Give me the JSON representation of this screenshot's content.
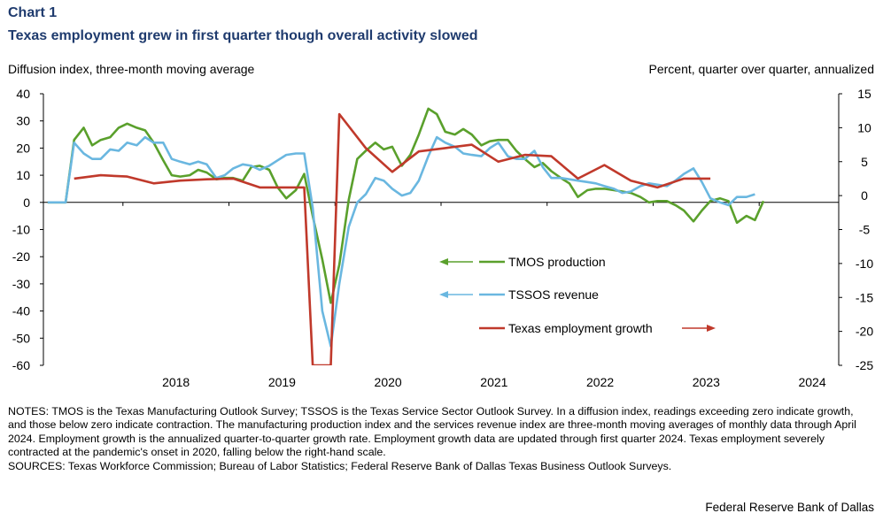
{
  "header": {
    "chart_number": "Chart 1",
    "title": "Texas employment grew in first quarter though overall activity slowed"
  },
  "units": {
    "left": "Diffusion index, three-month  moving average",
    "right": "Percent, quarter over quarter, annualized"
  },
  "notes": "NOTES: TMOS is the Texas Manufacturing Outlook Survey; TSSOS is the Texas Service Sector Outlook Survey. In a diffusion index, readings exceeding zero indicate growth, and those below zero indicate contraction. The manufacturing production index and the services revenue index are three-month moving averages of monthly data through April 2024.  Employment growth is the annualized quarter-to-quarter growth rate. Employment growth data are updated through first quarter 2024. Texas employment severely contracted at the pandemic's onset in 2020, falling below the right-hand scale.",
  "sources": "SOURCES: Texas Workforce Commission; Bureau of Labor Statistics; Federal Reserve Bank of Dallas Texas Business Outlook Surveys.",
  "credit": "Federal Reserve Bank of Dallas",
  "colors": {
    "tmos": "#5aa02c",
    "tssos": "#6ab7e0",
    "employment": "#c0392b",
    "axis": "#000000"
  },
  "chart_data": {
    "type": "line",
    "x_axis": {
      "ticks": [
        "2018",
        "2019",
        "2020",
        "2021",
        "2022",
        "2023",
        "2024"
      ],
      "range": [
        2017.25,
        2024.75
      ]
    },
    "y_left": {
      "range": [
        -60,
        40
      ],
      "ticks": [
        40,
        30,
        20,
        10,
        0,
        -10,
        -20,
        -30,
        -40,
        -50,
        -60
      ]
    },
    "y_right": {
      "range": [
        -25,
        15
      ],
      "ticks": [
        15,
        10,
        5,
        0,
        -5,
        -10,
        -15,
        -20,
        -25
      ]
    },
    "series": [
      {
        "name": "TMOS production",
        "axis": "left",
        "legend_arrow": "left",
        "points": [
          [
            2017.29,
            0
          ],
          [
            2017.46,
            0
          ],
          [
            2017.54,
            23
          ],
          [
            2017.63,
            27.5
          ],
          [
            2017.71,
            21
          ],
          [
            2017.79,
            23
          ],
          [
            2017.88,
            24
          ],
          [
            2017.96,
            27.5
          ],
          [
            2018.04,
            29
          ],
          [
            2018.13,
            27.5
          ],
          [
            2018.21,
            26.5
          ],
          [
            2018.29,
            22
          ],
          [
            2018.38,
            15.5
          ],
          [
            2018.46,
            10
          ],
          [
            2018.54,
            9.5
          ],
          [
            2018.63,
            10
          ],
          [
            2018.71,
            12
          ],
          [
            2018.79,
            11
          ],
          [
            2018.88,
            8.5
          ],
          [
            2018.96,
            9
          ],
          [
            2019.04,
            9
          ],
          [
            2019.13,
            8
          ],
          [
            2019.21,
            13
          ],
          [
            2019.29,
            13.5
          ],
          [
            2019.38,
            12
          ],
          [
            2019.46,
            5.5
          ],
          [
            2019.54,
            1.5
          ],
          [
            2019.63,
            4.5
          ],
          [
            2019.71,
            10.5
          ],
          [
            2019.79,
            -5
          ],
          [
            2019.88,
            -21
          ],
          [
            2019.96,
            -37
          ],
          [
            2020.04,
            -23
          ],
          [
            2020.13,
            1
          ],
          [
            2020.21,
            16
          ],
          [
            2020.29,
            19
          ],
          [
            2020.38,
            22
          ],
          [
            2020.46,
            19.5
          ],
          [
            2020.54,
            20.5
          ],
          [
            2020.63,
            13.5
          ],
          [
            2020.71,
            17.5
          ],
          [
            2020.79,
            25
          ],
          [
            2020.88,
            34.5
          ],
          [
            2020.96,
            32.5
          ],
          [
            2021.04,
            26
          ],
          [
            2021.13,
            25
          ],
          [
            2021.21,
            27
          ],
          [
            2021.29,
            25
          ],
          [
            2021.38,
            21
          ],
          [
            2021.46,
            22.5
          ],
          [
            2021.54,
            23
          ],
          [
            2021.63,
            23
          ],
          [
            2021.71,
            19
          ],
          [
            2021.79,
            16
          ],
          [
            2021.88,
            13
          ],
          [
            2021.96,
            14.5
          ],
          [
            2022.04,
            11.5
          ],
          [
            2022.13,
            9
          ],
          [
            2022.21,
            7
          ],
          [
            2022.29,
            2
          ],
          [
            2022.38,
            4.5
          ],
          [
            2022.46,
            5
          ],
          [
            2022.54,
            5
          ],
          [
            2022.63,
            4.5
          ],
          [
            2022.71,
            4
          ],
          [
            2022.79,
            3.5
          ],
          [
            2022.88,
            2
          ],
          [
            2022.96,
            0
          ],
          [
            2023.04,
            0.5
          ],
          [
            2023.13,
            0.5
          ],
          [
            2023.21,
            -1
          ],
          [
            2023.29,
            -3
          ],
          [
            2023.38,
            -7
          ],
          [
            2023.46,
            -3
          ],
          [
            2023.54,
            0.5
          ],
          [
            2023.63,
            1.5
          ],
          [
            2023.71,
            0.5
          ],
          [
            2023.79,
            -7.5
          ],
          [
            2023.88,
            -5
          ],
          [
            2023.96,
            -6.5
          ],
          [
            2024.04,
            0.5
          ]
        ]
      },
      {
        "name": "TSSOS revenue",
        "axis": "left",
        "legend_arrow": "left",
        "points": [
          [
            2017.29,
            0
          ],
          [
            2017.46,
            0
          ],
          [
            2017.54,
            22
          ],
          [
            2017.63,
            18
          ],
          [
            2017.71,
            16
          ],
          [
            2017.79,
            16
          ],
          [
            2017.88,
            19.5
          ],
          [
            2017.96,
            19
          ],
          [
            2018.04,
            22
          ],
          [
            2018.13,
            21
          ],
          [
            2018.21,
            24
          ],
          [
            2018.29,
            22
          ],
          [
            2018.38,
            22
          ],
          [
            2018.46,
            16
          ],
          [
            2018.54,
            15
          ],
          [
            2018.63,
            14
          ],
          [
            2018.71,
            15
          ],
          [
            2018.79,
            14
          ],
          [
            2018.88,
            9
          ],
          [
            2018.96,
            10
          ],
          [
            2019.04,
            12.5
          ],
          [
            2019.13,
            14
          ],
          [
            2019.21,
            13.5
          ],
          [
            2019.29,
            12
          ],
          [
            2019.38,
            13.5
          ],
          [
            2019.46,
            15.5
          ],
          [
            2019.54,
            17.5
          ],
          [
            2019.63,
            18
          ],
          [
            2019.71,
            18
          ],
          [
            2019.79,
            -2
          ],
          [
            2019.88,
            -40
          ],
          [
            2019.96,
            -53
          ],
          [
            2020.04,
            -30
          ],
          [
            2020.13,
            -9
          ],
          [
            2020.21,
            0
          ],
          [
            2020.29,
            3
          ],
          [
            2020.38,
            9
          ],
          [
            2020.46,
            8
          ],
          [
            2020.54,
            5
          ],
          [
            2020.63,
            2.5
          ],
          [
            2020.71,
            3.5
          ],
          [
            2020.79,
            8
          ],
          [
            2020.88,
            17
          ],
          [
            2020.96,
            24
          ],
          [
            2021.04,
            22
          ],
          [
            2021.13,
            20.5
          ],
          [
            2021.21,
            18
          ],
          [
            2021.29,
            17.5
          ],
          [
            2021.38,
            17
          ],
          [
            2021.46,
            20
          ],
          [
            2021.54,
            22
          ],
          [
            2021.63,
            17
          ],
          [
            2021.71,
            16
          ],
          [
            2021.79,
            16
          ],
          [
            2021.88,
            19
          ],
          [
            2021.96,
            13
          ],
          [
            2022.04,
            9
          ],
          [
            2022.13,
            9
          ],
          [
            2022.21,
            8.5
          ],
          [
            2022.29,
            8
          ],
          [
            2022.38,
            7.5
          ],
          [
            2022.46,
            7
          ],
          [
            2022.54,
            6
          ],
          [
            2022.63,
            5
          ],
          [
            2022.71,
            3.5
          ],
          [
            2022.79,
            4
          ],
          [
            2022.88,
            6
          ],
          [
            2022.96,
            7
          ],
          [
            2023.04,
            6.5
          ],
          [
            2023.13,
            6
          ],
          [
            2023.21,
            8
          ],
          [
            2023.29,
            10.5
          ],
          [
            2023.38,
            12.5
          ],
          [
            2023.46,
            7.5
          ],
          [
            2023.54,
            1.5
          ],
          [
            2023.63,
            0
          ],
          [
            2023.71,
            -1
          ],
          [
            2023.79,
            2
          ],
          [
            2023.88,
            2
          ],
          [
            2023.96,
            3
          ]
        ]
      },
      {
        "name": "Texas employment growth",
        "axis": "right",
        "legend_arrow": "right",
        "points": [
          [
            2017.54,
            2.5
          ],
          [
            2017.79,
            3
          ],
          [
            2018.04,
            2.8
          ],
          [
            2018.29,
            1.8
          ],
          [
            2018.54,
            2.2
          ],
          [
            2018.79,
            2.4
          ],
          [
            2019.04,
            2.5
          ],
          [
            2019.29,
            1.2
          ],
          [
            2019.54,
            1.2
          ],
          [
            2019.71,
            1.2
          ],
          [
            2019.79,
            -25
          ],
          [
            2019.96,
            -25
          ],
          [
            2020.04,
            12
          ],
          [
            2020.29,
            7
          ],
          [
            2020.54,
            3.5
          ],
          [
            2020.79,
            6.5
          ],
          [
            2021.04,
            7
          ],
          [
            2021.29,
            7.5
          ],
          [
            2021.54,
            5
          ],
          [
            2021.79,
            6
          ],
          [
            2022.04,
            5.8
          ],
          [
            2022.29,
            2.5
          ],
          [
            2022.54,
            4.5
          ],
          [
            2022.79,
            2.2
          ],
          [
            2023.04,
            1.2
          ],
          [
            2023.29,
            2.5
          ],
          [
            2023.54,
            2.5
          ]
        ]
      }
    ]
  }
}
